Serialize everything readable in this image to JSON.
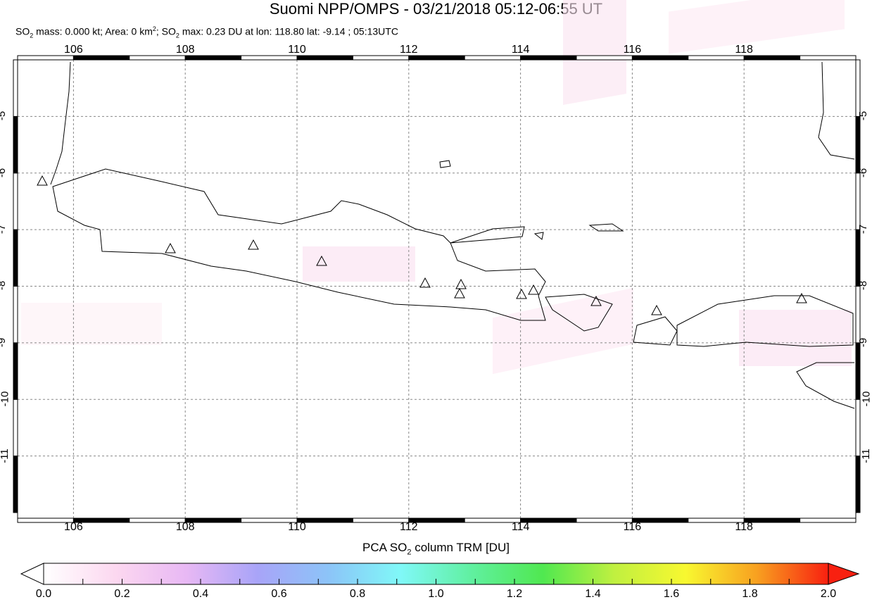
{
  "title": "Suomi NPP/OMPS - 03/21/2018 05:12-06:55 UT",
  "subtitle": {
    "p1": "SO",
    "p2": " mass: 0.000 kt; Area: 0 km",
    "p3": "; SO",
    "p4": " max: 0.23 DU at lon: 118.80 lat: -9.14 ; 05:13UTC"
  },
  "map": {
    "lon_range": [
      105,
      120
    ],
    "lat_range": [
      -12.1,
      -4
    ],
    "lon_ticks": [
      "106",
      "108",
      "110",
      "112",
      "114",
      "116",
      "118"
    ],
    "lat_ticks": [
      "-5",
      "-6",
      "-7",
      "-8",
      "-9",
      "-10",
      "-11"
    ],
    "grid": "dashed",
    "markers": "volcano triangles"
  },
  "colorbar": {
    "label_pre": "PCA SO",
    "label_post": " column TRM [DU]",
    "ticks": [
      "0.0",
      "0.2",
      "0.4",
      "0.6",
      "0.8",
      "1.0",
      "1.2",
      "1.4",
      "1.6",
      "1.8",
      "2.0"
    ],
    "range": [
      0,
      2
    ],
    "colors": [
      "#ffffff",
      "#fcd8f0",
      "#e8b8f4",
      "#a8a4f8",
      "#8cc4f8",
      "#80f8f8",
      "#60f0a0",
      "#50e850",
      "#c0f040",
      "#f8f830",
      "#f8a020",
      "#f82010"
    ]
  }
}
